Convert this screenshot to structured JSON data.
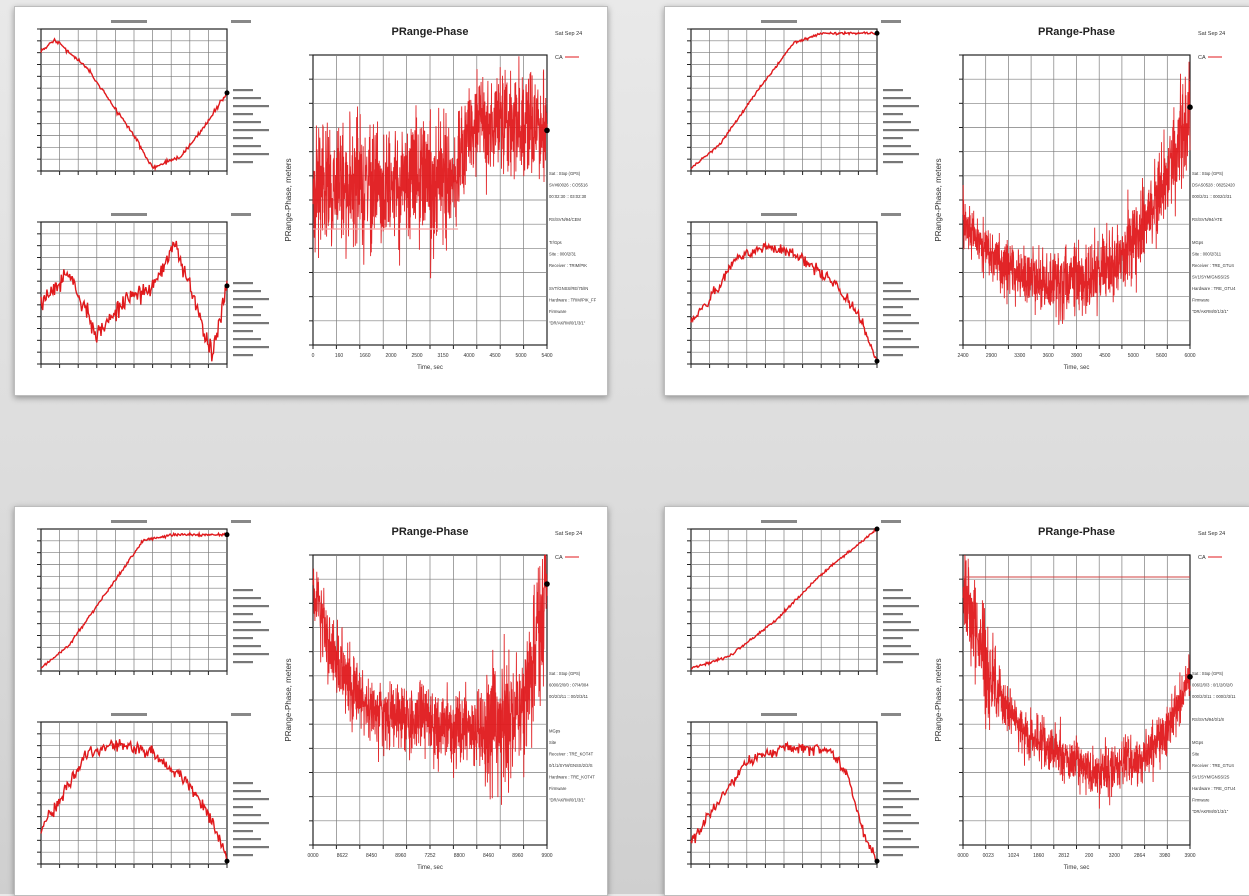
{
  "panels": [
    {
      "big_title": "PRange-Phase",
      "big_date": "Sat Sep 24",
      "big_ylabel": "PRange-Phase, meters",
      "big_xlabel": "Time, sec",
      "legend_tag": "CA",
      "readout": [
        "Sat : Stop (GPS)",
        "SV#60026 : CO5516",
        "00:02:30 :: 03:02:30",
        "",
        "RS/SVN/94/CEM",
        "",
        "Tr/Gps",
        "Site : 000/2/31",
        "Receiver : TRIM/PIK",
        "",
        "SVT/GNSS/RE/75/IN",
        "Hardware : TRIM/PIK_FF",
        "Firmware",
        "\"DR/AKRM/0/1/3/1\""
      ],
      "x_ticks": [
        "0",
        "160",
        "1660",
        "2000",
        "2500",
        "3150",
        "4000",
        "4500",
        "5000",
        "5400"
      ]
    },
    {
      "big_title": "PRange-Phase",
      "big_date": "Sat Sep 24",
      "big_ylabel": "PRange-Phase, meters",
      "big_xlabel": "Time, sec",
      "legend_tag": "CA",
      "readout": [
        "Sat : Stop (GPS)",
        "DSAS0528 : 08252420",
        "000/2/31 :: 0002/2/31",
        "",
        "RS/SVN/94/ATE",
        "",
        "MGps",
        "Site : 000/2/311",
        "Receiver : TRE_GTU4",
        "SV1/SYM/GNSS/2S",
        "Hardware : TRE_GTU4",
        "Firmware",
        "\"DR/AKRM/0/1/3/1\""
      ],
      "x_ticks": [
        "2400",
        "2900",
        "3300",
        "3600",
        "3900",
        "4500",
        "5000",
        "5600",
        "6000"
      ]
    },
    {
      "big_title": "PRange-Phase",
      "big_date": "Sat Sep 24",
      "big_ylabel": "PRange-Phase, meters",
      "big_xlabel": "Time, sec",
      "legend_tag": "CA",
      "readout": [
        "Sat : Stop (GPS)",
        "6000/2/0/0 : 07/4/004",
        "00/2/3/11 :: 00/2/3/11",
        "",
        "",
        "MGps",
        "Site",
        "Receiver : TRE_KOT4T",
        "0/1/1/SYM/GNSS/2/2/S",
        "Hardware : TRE_KOT4T",
        "Firmware",
        "\"DR/AKRM/0/1/3/1\""
      ],
      "x_ticks": [
        "0000",
        "8622",
        "8450",
        "8960",
        "7252",
        "8800",
        "8460",
        "8960",
        "9900"
      ]
    },
    {
      "big_title": "PRange-Phase",
      "big_date": "Sat Sep 24",
      "big_ylabel": "PRange-Phase, meters",
      "big_xlabel": "Time, sec",
      "legend_tag": "CA",
      "readout": [
        "Sat : Stop (GPS)",
        "006/2/0/3 : 0/1/2/0/2/0",
        "000/2/3/11 :: 000/2/3/11",
        "",
        "RS/SVN/94/0/1/8",
        "",
        "MGps",
        "Site",
        "Receiver : TRE_GTU4",
        "SV1/SYM/GNSS/2S",
        "Hardware : TRE_GTU4",
        "Firmware",
        "\"DR/AKRM/0/1/3/1\""
      ],
      "x_ticks": [
        "0000",
        "0023",
        "1024",
        "1860",
        "2812",
        "200",
        "3200",
        "2864",
        "3980",
        "3900"
      ]
    }
  ],
  "chart_data": [
    {
      "type": "line",
      "title": "PRange-Phase",
      "xlabel": "Time, sec",
      "ylabel": "PRange-Phase, meters",
      "series": [
        {
          "x": [
            0,
            0.1,
            0.2,
            0.3,
            0.4,
            0.5,
            0.6,
            0.65,
            0.7,
            0.8,
            0.9,
            1.0
          ],
          "values": [
            0.55,
            0.55,
            0.56,
            0.55,
            0.55,
            0.56,
            0.55,
            0.7,
            0.78,
            0.76,
            0.75,
            0.74
          ]
        }
      ]
    },
    {
      "type": "line",
      "title": "PRange-Phase",
      "xlabel": "Time, sec",
      "ylabel": "PRange-Phase, meters",
      "series": [
        {
          "x": [
            0,
            0.1,
            0.2,
            0.3,
            0.4,
            0.5,
            0.6,
            0.7,
            0.8,
            0.9,
            1.0
          ],
          "values": [
            0.45,
            0.32,
            0.26,
            0.23,
            0.22,
            0.22,
            0.25,
            0.31,
            0.42,
            0.58,
            0.82
          ]
        }
      ]
    },
    {
      "type": "line",
      "title": "PRange-Phase",
      "xlabel": "Time, sec",
      "ylabel": "PRange-Phase, meters",
      "series": [
        {
          "x": [
            0,
            0.1,
            0.2,
            0.3,
            0.4,
            0.5,
            0.6,
            0.7,
            0.8,
            0.9,
            1.0
          ],
          "values": [
            0.88,
            0.62,
            0.5,
            0.45,
            0.43,
            0.42,
            0.41,
            0.4,
            0.41,
            0.48,
            0.9
          ]
        }
      ]
    },
    {
      "type": "line",
      "title": "PRange-Phase",
      "xlabel": "Time, sec",
      "ylabel": "PRange-Phase, meters",
      "series": [
        {
          "x": [
            0,
            0.1,
            0.2,
            0.3,
            0.4,
            0.5,
            0.6,
            0.7,
            0.8,
            0.9,
            1.0
          ],
          "values": [
            0.9,
            0.62,
            0.45,
            0.37,
            0.33,
            0.28,
            0.25,
            0.27,
            0.3,
            0.4,
            0.58
          ]
        }
      ]
    }
  ],
  "colors": {
    "trace": "#e0191c",
    "grid": "#7d7d7d",
    "axis": "#222222"
  }
}
